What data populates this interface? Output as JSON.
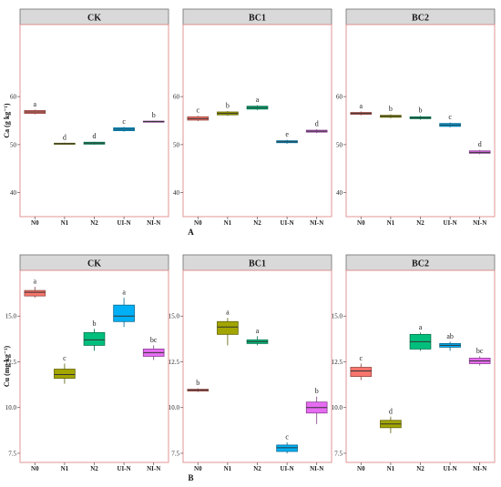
{
  "chart_data": [
    {
      "type": "box",
      "panel_label": "A",
      "ylabel": "Ca  (g kg⁻¹)",
      "ylim": [
        35,
        75
      ],
      "yticks": [
        40,
        50,
        60
      ],
      "facets": [
        "CK",
        "BC1",
        "BC2"
      ],
      "categories": [
        "N0",
        "N1",
        "N2",
        "UI-N",
        "NI-N"
      ],
      "colors": [
        "#F8766D",
        "#A3A500",
        "#00BF7D",
        "#00B0F6",
        "#E76BF3"
      ],
      "boxes": {
        "CK": [
          {
            "q1": 56.5,
            "median": 56.8,
            "q3": 57.1,
            "min": 56.3,
            "max": 57.3,
            "letter": "a"
          },
          {
            "q1": 50.1,
            "median": 50.2,
            "q3": 50.3,
            "min": 50.0,
            "max": 50.4,
            "letter": "d"
          },
          {
            "q1": 50.1,
            "median": 50.3,
            "q3": 50.5,
            "min": 50.0,
            "max": 50.6,
            "letter": "d"
          },
          {
            "q1": 52.9,
            "median": 53.2,
            "q3": 53.5,
            "min": 52.7,
            "max": 53.7,
            "letter": "c"
          },
          {
            "q1": 54.7,
            "median": 54.8,
            "q3": 54.9,
            "min": 54.6,
            "max": 55.0,
            "letter": "b"
          }
        ],
        "BC1": [
          {
            "q1": 55.1,
            "median": 55.4,
            "q3": 55.8,
            "min": 54.9,
            "max": 56.0,
            "letter": "c"
          },
          {
            "q1": 56.2,
            "median": 56.5,
            "q3": 56.8,
            "min": 56.0,
            "max": 57.0,
            "letter": "b"
          },
          {
            "q1": 57.4,
            "median": 57.7,
            "q3": 58.0,
            "min": 57.2,
            "max": 58.2,
            "letter": "a"
          },
          {
            "q1": 50.4,
            "median": 50.6,
            "q3": 50.8,
            "min": 50.2,
            "max": 51.0,
            "letter": "e"
          },
          {
            "q1": 52.6,
            "median": 52.8,
            "q3": 53.0,
            "min": 52.4,
            "max": 53.2,
            "letter": "d"
          }
        ],
        "BC2": [
          {
            "q1": 56.3,
            "median": 56.5,
            "q3": 56.7,
            "min": 56.1,
            "max": 56.9,
            "letter": "a"
          },
          {
            "q1": 55.7,
            "median": 55.9,
            "q3": 56.1,
            "min": 55.5,
            "max": 56.3,
            "letter": "b"
          },
          {
            "q1": 55.4,
            "median": 55.6,
            "q3": 55.8,
            "min": 55.2,
            "max": 56.0,
            "letter": "b"
          },
          {
            "q1": 53.8,
            "median": 54.1,
            "q3": 54.4,
            "min": 53.6,
            "max": 54.6,
            "letter": "c"
          },
          {
            "q1": 48.2,
            "median": 48.4,
            "q3": 48.7,
            "min": 48.0,
            "max": 48.9,
            "letter": "d"
          }
        ]
      }
    },
    {
      "type": "box",
      "panel_label": "B",
      "ylabel": "Cu  (mg kg⁻¹)",
      "ylim": [
        7.0,
        17.5
      ],
      "yticks": [
        7.5,
        10.0,
        12.5,
        15.0
      ],
      "ytick_labels": [
        "7.5",
        "10.0",
        "12.5",
        "15.0"
      ],
      "facets": [
        "CK",
        "BC1",
        "BC2"
      ],
      "categories": [
        "N0",
        "N1",
        "N2",
        "UI-N",
        "NI-N"
      ],
      "colors": [
        "#F8766D",
        "#A3A500",
        "#00BF7D",
        "#00B0F6",
        "#E76BF3"
      ],
      "boxes": {
        "CK": [
          {
            "q1": 16.1,
            "median": 16.3,
            "q3": 16.4,
            "min": 16.0,
            "max": 16.6,
            "letter": "a"
          },
          {
            "q1": 11.6,
            "median": 11.8,
            "q3": 12.1,
            "min": 11.3,
            "max": 12.4,
            "letter": "c"
          },
          {
            "q1": 13.4,
            "median": 13.7,
            "q3": 14.1,
            "min": 13.1,
            "max": 14.3,
            "letter": "b"
          },
          {
            "q1": 14.7,
            "median": 15.0,
            "q3": 15.6,
            "min": 14.4,
            "max": 16.0,
            "letter": "a"
          },
          {
            "q1": 12.8,
            "median": 13.0,
            "q3": 13.2,
            "min": 12.6,
            "max": 13.4,
            "letter": "bc"
          }
        ],
        "BC1": [
          {
            "q1": 10.9,
            "median": 10.95,
            "q3": 11.0,
            "min": 10.85,
            "max": 11.05,
            "letter": "b"
          },
          {
            "q1": 14.0,
            "median": 14.4,
            "q3": 14.7,
            "min": 13.4,
            "max": 14.9,
            "letter": "a"
          },
          {
            "q1": 13.5,
            "median": 13.6,
            "q3": 13.7,
            "min": 13.4,
            "max": 13.9,
            "letter": "a"
          },
          {
            "q1": 7.6,
            "median": 7.8,
            "q3": 7.95,
            "min": 7.5,
            "max": 8.1,
            "letter": "c"
          },
          {
            "q1": 9.7,
            "median": 10.0,
            "q3": 10.3,
            "min": 9.1,
            "max": 10.6,
            "letter": "b"
          }
        ],
        "BC2": [
          {
            "q1": 11.7,
            "median": 12.0,
            "q3": 12.2,
            "min": 11.5,
            "max": 12.4,
            "letter": "c"
          },
          {
            "q1": 8.9,
            "median": 9.1,
            "q3": 9.3,
            "min": 8.6,
            "max": 9.5,
            "letter": "d"
          },
          {
            "q1": 13.2,
            "median": 13.6,
            "q3": 14.0,
            "min": 13.1,
            "max": 14.1,
            "letter": "a"
          },
          {
            "q1": 13.3,
            "median": 13.4,
            "q3": 13.5,
            "min": 13.1,
            "max": 13.6,
            "letter": "ab"
          },
          {
            "q1": 12.4,
            "median": 12.55,
            "q3": 12.7,
            "min": 12.3,
            "max": 12.8,
            "letter": "bc"
          }
        ]
      }
    }
  ]
}
